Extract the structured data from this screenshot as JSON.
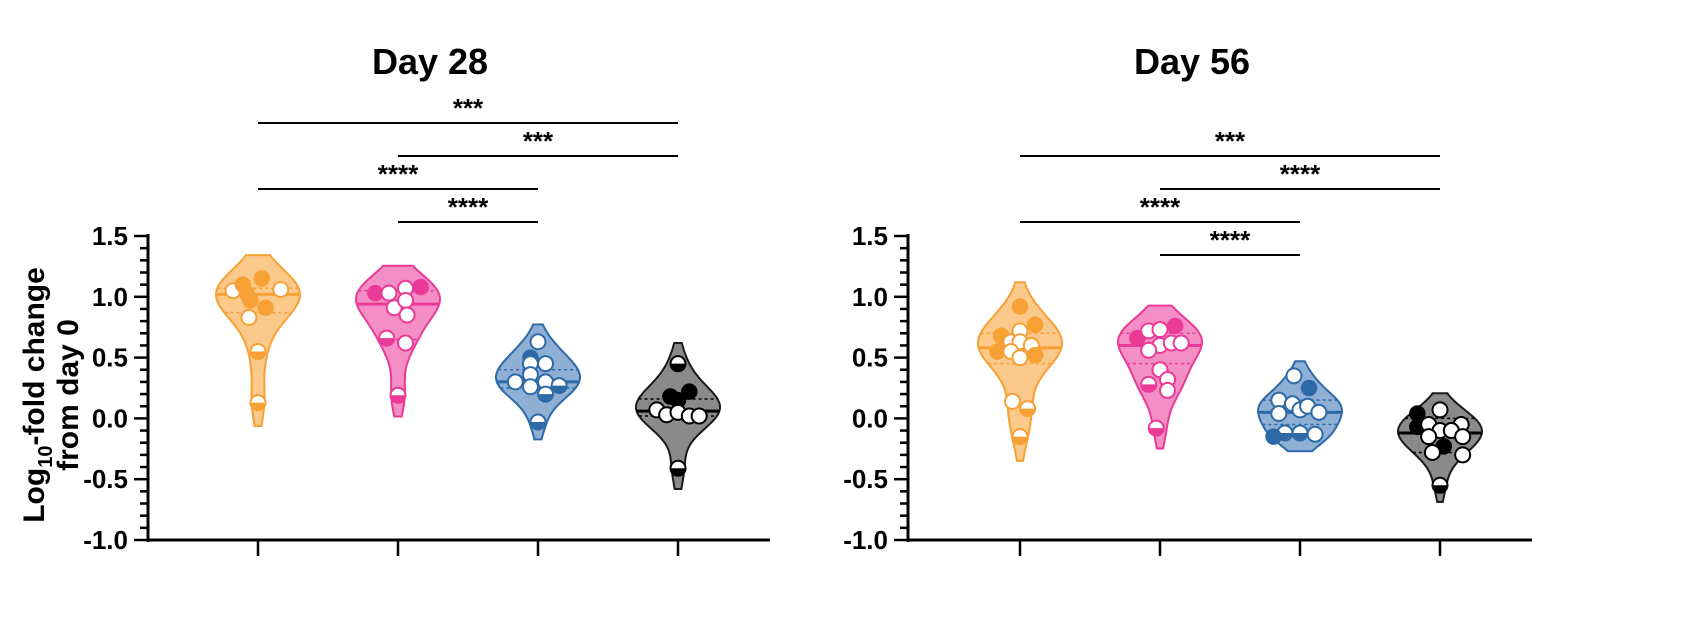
{
  "ylabel_line1": "Log",
  "ylabel_sub": "10",
  "ylabel_line1_rest": "-fold change",
  "ylabel_line2": "from day 0",
  "colors": {
    "orange": "#f7a035",
    "pink": "#ea3a97",
    "blue": "#2f6aa8",
    "black": "#1a1a1a"
  },
  "chart_data": [
    {
      "type": "violin",
      "title": "Day 28",
      "ylabel": "Log10-fold change from day 0",
      "ylim": [
        -1.0,
        1.5
      ],
      "yticks": [
        "1.5",
        "1.0",
        "0.5",
        "0.0",
        "-0.5",
        "-1.0"
      ],
      "groups": [
        {
          "color": "orange",
          "median": 1.02,
          "quartiles": [
            0.87,
            1.07
          ],
          "points": [
            [
              -0.33,
              1.05,
              "white"
            ],
            [
              -0.2,
              1.1,
              "filled"
            ],
            [
              -0.15,
              1.03,
              "filled"
            ],
            [
              0.05,
              1.15,
              "filled"
            ],
            [
              -0.1,
              0.97,
              "filled"
            ],
            [
              0.1,
              0.91,
              "filled"
            ],
            [
              0.3,
              1.06,
              "white"
            ],
            [
              -0.12,
              0.83,
              "white"
            ],
            [
              0.0,
              0.55,
              "half"
            ],
            [
              0.0,
              0.13,
              "half"
            ]
          ]
        },
        {
          "color": "pink",
          "median": 0.94,
          "quartiles": [
            0.65,
            1.05
          ],
          "points": [
            [
              -0.3,
              1.03,
              "filled"
            ],
            [
              -0.12,
              1.03,
              "white"
            ],
            [
              0.1,
              1.07,
              "white"
            ],
            [
              0.3,
              1.08,
              "filled"
            ],
            [
              -0.05,
              0.91,
              "white"
            ],
            [
              0.1,
              0.97,
              "white"
            ],
            [
              0.12,
              0.85,
              "white"
            ],
            [
              -0.15,
              0.66,
              "half"
            ],
            [
              0.1,
              0.62,
              "white"
            ],
            [
              0.0,
              0.19,
              "half"
            ]
          ]
        },
        {
          "color": "blue",
          "median": 0.3,
          "quartiles": [
            0.25,
            0.4
          ],
          "points": [
            [
              -0.1,
              0.5,
              "filled"
            ],
            [
              0.0,
              0.63,
              "white"
            ],
            [
              -0.1,
              0.45,
              "white"
            ],
            [
              0.1,
              0.45,
              "white"
            ],
            [
              -0.1,
              0.36,
              "white"
            ],
            [
              0.1,
              0.3,
              "white"
            ],
            [
              -0.3,
              0.3,
              "white"
            ],
            [
              0.28,
              0.27,
              "half"
            ],
            [
              -0.1,
              0.26,
              "white"
            ],
            [
              0.1,
              0.2,
              "half"
            ],
            [
              0.0,
              -0.03,
              "half"
            ]
          ]
        },
        {
          "color": "black",
          "median": 0.06,
          "quartiles": [
            0.02,
            0.16
          ],
          "points": [
            [
              0.0,
              0.45,
              "half"
            ],
            [
              -0.1,
              0.18,
              "filled"
            ],
            [
              0.0,
              0.15,
              "filled"
            ],
            [
              0.15,
              0.22,
              "filled"
            ],
            [
              -0.28,
              0.07,
              "white"
            ],
            [
              -0.15,
              0.03,
              "white"
            ],
            [
              0.0,
              0.05,
              "white"
            ],
            [
              0.15,
              0.02,
              "white"
            ],
            [
              0.28,
              0.02,
              "white"
            ],
            [
              0.0,
              -0.41,
              "half"
            ]
          ]
        }
      ],
      "comparisons": [
        {
          "from": 1,
          "to": 4,
          "label": "***"
        },
        {
          "from": 2,
          "to": 4,
          "label": "***"
        },
        {
          "from": 1,
          "to": 3,
          "label": "****"
        },
        {
          "from": 2,
          "to": 3,
          "label": "****"
        }
      ]
    },
    {
      "type": "violin",
      "title": "Day 56",
      "ylabel": "",
      "ylim": [
        -1.0,
        1.5
      ],
      "yticks": [
        "1.5",
        "1.0",
        "0.5",
        "0.0",
        "-0.5",
        "-1.0"
      ],
      "groups": [
        {
          "color": "orange",
          "median": 0.58,
          "quartiles": [
            0.45,
            0.7
          ],
          "points": [
            [
              0.0,
              0.92,
              "filled"
            ],
            [
              0.2,
              0.77,
              "filled"
            ],
            [
              -0.25,
              0.68,
              "filled"
            ],
            [
              0.0,
              0.72,
              "white"
            ],
            [
              -0.12,
              0.63,
              "white"
            ],
            [
              0.0,
              0.63,
              "white"
            ],
            [
              0.15,
              0.6,
              "white"
            ],
            [
              -0.3,
              0.55,
              "filled"
            ],
            [
              -0.12,
              0.55,
              "white"
            ],
            [
              0.2,
              0.52,
              "filled"
            ],
            [
              0.0,
              0.5,
              "white"
            ],
            [
              -0.1,
              0.14,
              "white"
            ],
            [
              0.1,
              0.08,
              "half"
            ],
            [
              0.0,
              -0.15,
              "half"
            ]
          ]
        },
        {
          "color": "pink",
          "median": 0.6,
          "quartiles": [
            0.45,
            0.7
          ],
          "points": [
            [
              -0.3,
              0.66,
              "filled"
            ],
            [
              -0.15,
              0.72,
              "white"
            ],
            [
              0.0,
              0.73,
              "white"
            ],
            [
              0.2,
              0.76,
              "filled"
            ],
            [
              0.0,
              0.6,
              "white"
            ],
            [
              0.15,
              0.62,
              "white"
            ],
            [
              0.28,
              0.62,
              "white"
            ],
            [
              -0.15,
              0.56,
              "white"
            ],
            [
              0.0,
              0.4,
              "white"
            ],
            [
              0.1,
              0.32,
              "white"
            ],
            [
              -0.15,
              0.28,
              "half"
            ],
            [
              0.1,
              0.23,
              "white"
            ],
            [
              -0.05,
              -0.08,
              "half"
            ]
          ]
        },
        {
          "color": "blue",
          "median": 0.05,
          "quartiles": [
            -0.05,
            0.15
          ],
          "points": [
            [
              -0.28,
              0.15,
              "white"
            ],
            [
              -0.08,
              0.35,
              "white"
            ],
            [
              0.12,
              0.25,
              "filled"
            ],
            [
              -0.1,
              0.12,
              "white"
            ],
            [
              0.0,
              0.07,
              "white"
            ],
            [
              0.1,
              0.1,
              "white"
            ],
            [
              0.25,
              0.05,
              "white"
            ],
            [
              -0.28,
              0.04,
              "white"
            ],
            [
              -0.2,
              -0.12,
              "half"
            ],
            [
              0.0,
              -0.12,
              "half"
            ],
            [
              0.2,
              -0.13,
              "white"
            ],
            [
              -0.35,
              -0.15,
              "filled"
            ]
          ]
        },
        {
          "color": "black",
          "median": -0.12,
          "quartiles": [
            -0.28,
            0.0
          ],
          "points": [
            [
              -0.3,
              0.04,
              "filled"
            ],
            [
              -0.3,
              -0.07,
              "filled"
            ],
            [
              0.0,
              0.07,
              "white"
            ],
            [
              -0.15,
              -0.05,
              "white"
            ],
            [
              0.28,
              -0.05,
              "white"
            ],
            [
              0.0,
              -0.1,
              "white"
            ],
            [
              0.15,
              -0.1,
              "white"
            ],
            [
              0.3,
              -0.15,
              "white"
            ],
            [
              -0.15,
              -0.15,
              "white"
            ],
            [
              0.05,
              -0.23,
              "filled"
            ],
            [
              -0.1,
              -0.28,
              "white"
            ],
            [
              0.3,
              -0.3,
              "white"
            ],
            [
              0.0,
              -0.55,
              "half"
            ]
          ]
        }
      ],
      "comparisons": [
        {
          "from": 1,
          "to": 4,
          "label": "***"
        },
        {
          "from": 2,
          "to": 4,
          "label": "****"
        },
        {
          "from": 1,
          "to": 3,
          "label": "****"
        },
        {
          "from": 2,
          "to": 3,
          "label": "****"
        }
      ]
    }
  ]
}
